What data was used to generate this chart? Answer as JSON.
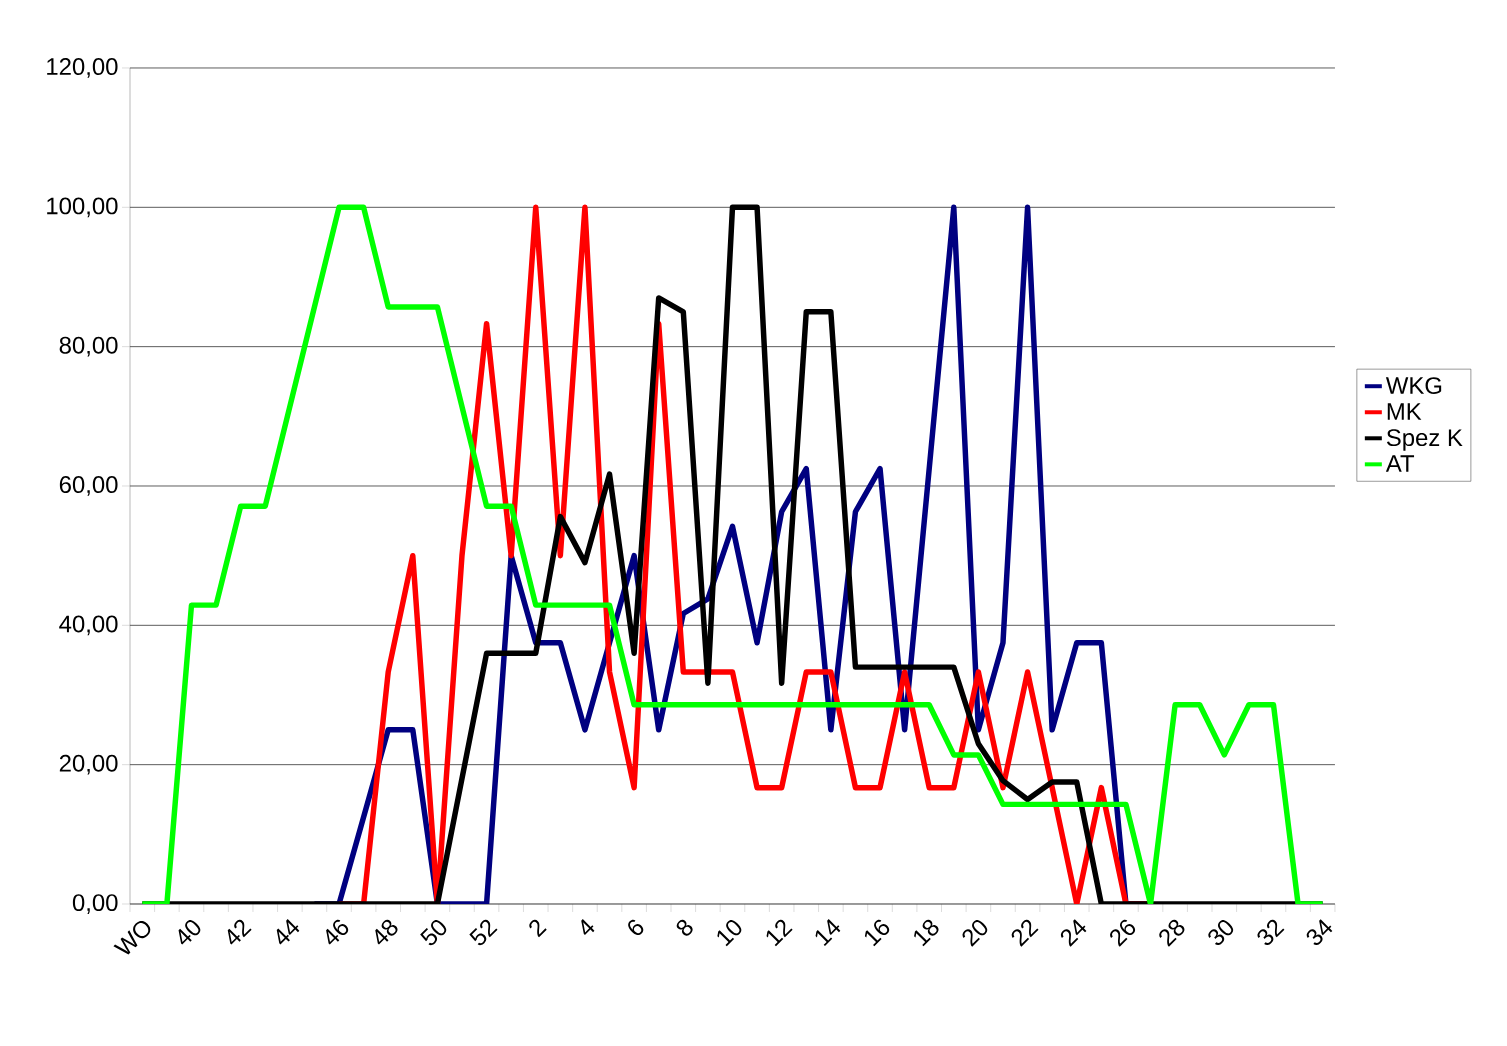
{
  "chart_data": {
    "type": "line",
    "categories": [
      "WO",
      null,
      "40",
      null,
      "42",
      null,
      "44",
      null,
      "46",
      null,
      "48",
      null,
      "50",
      null,
      "52",
      null,
      "2",
      null,
      "4",
      null,
      "6",
      null,
      "8",
      null,
      "10",
      null,
      "12",
      null,
      "14",
      null,
      "16",
      null,
      "18",
      null,
      "20",
      null,
      "22",
      null,
      "24",
      null,
      "26",
      null,
      "28",
      null,
      "30",
      null,
      "32",
      null,
      "34"
    ],
    "series": [
      {
        "name": "WKG",
        "color": "#000080",
        "values": [
          null,
          null,
          null,
          null,
          null,
          null,
          null,
          0,
          0,
          12.5,
          25,
          25,
          0,
          0,
          0,
          50,
          37.5,
          37.5,
          25,
          37.5,
          50,
          25,
          41.7,
          43.8,
          54.2,
          37.5,
          56.3,
          62.5,
          25,
          56.3,
          62.5,
          25,
          62.5,
          100,
          25,
          37.5,
          100,
          25,
          37.5,
          37.5,
          0,
          0,
          null,
          null,
          null,
          null,
          null,
          null,
          null
        ]
      },
      {
        "name": "MK",
        "color": "#ff0000",
        "values": [
          null,
          null,
          null,
          null,
          null,
          null,
          null,
          null,
          0,
          0,
          33.3,
          50,
          0,
          50,
          83.3,
          50,
          100,
          50,
          100,
          33.3,
          16.7,
          83.3,
          33.3,
          33.3,
          33.3,
          16.7,
          16.7,
          33.3,
          33.3,
          16.7,
          16.7,
          33.3,
          16.7,
          16.7,
          33.3,
          16.7,
          33.3,
          16.7,
          0,
          16.7,
          0,
          0,
          null,
          null,
          null,
          null,
          null,
          null,
          null
        ]
      },
      {
        "name": "Spez K",
        "color": "#000000",
        "values": [
          0,
          0,
          0,
          0,
          0,
          0,
          0,
          0,
          0,
          0,
          0,
          0,
          0,
          18,
          36,
          36,
          36,
          55.6,
          49,
          61.7,
          36,
          87,
          85,
          31.7,
          100,
          100,
          31.7,
          85,
          85,
          34,
          34,
          34,
          34,
          34,
          23,
          17.7,
          15,
          17.5,
          17.5,
          0,
          0,
          0,
          0,
          0,
          0,
          0,
          0,
          0,
          0
        ]
      },
      {
        "name": "AT",
        "color": "#00ff00",
        "values": [
          0,
          0,
          42.9,
          42.9,
          57.1,
          57.1,
          71.4,
          85.7,
          100,
          100,
          85.7,
          85.7,
          85.7,
          71.4,
          57.1,
          57.1,
          42.9,
          42.9,
          42.9,
          42.9,
          28.6,
          28.6,
          28.6,
          28.6,
          28.6,
          28.6,
          28.6,
          28.6,
          28.6,
          28.6,
          28.6,
          28.6,
          28.6,
          21.4,
          21.4,
          14.3,
          14.3,
          14.3,
          14.3,
          14.3,
          14.3,
          0,
          28.6,
          28.6,
          21.4,
          28.6,
          28.6,
          0,
          0
        ]
      }
    ],
    "ylim": [
      0,
      120
    ],
    "yticks": [
      {
        "value": 0,
        "label": "0,00"
      },
      {
        "value": 20,
        "label": "20,00"
      },
      {
        "value": 40,
        "label": "40,00"
      },
      {
        "value": 60,
        "label": "60,00"
      },
      {
        "value": 80,
        "label": "80,00"
      },
      {
        "value": 100,
        "label": "100,00"
      },
      {
        "value": 120,
        "label": "120,00"
      }
    ],
    "grid": "y",
    "legend": "right",
    "marker": "none",
    "line_style": "solid"
  }
}
